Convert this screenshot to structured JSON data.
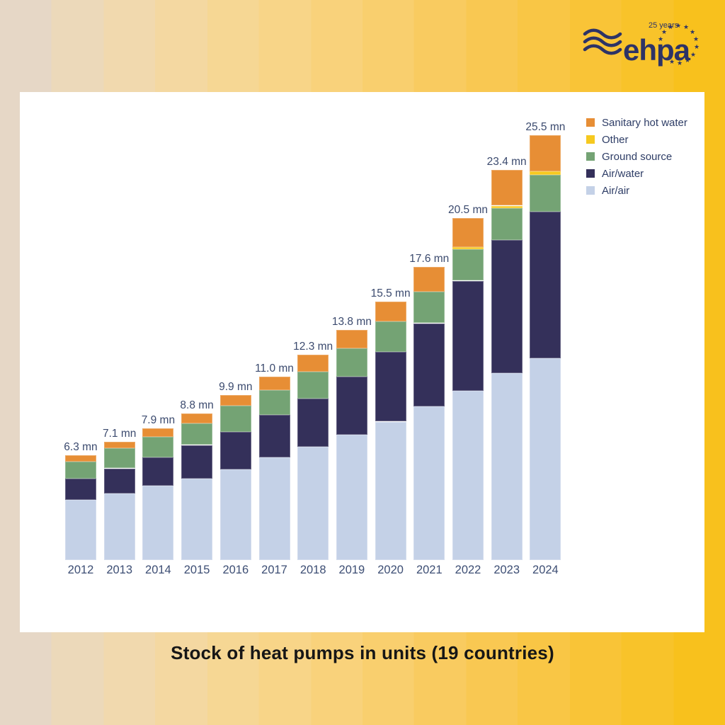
{
  "logo": {
    "wordmark": "ehpa",
    "badge": "25 years",
    "color": "#2d3366"
  },
  "title": "Stock of heat pumps in units (19 countries)",
  "chart_data": {
    "type": "bar",
    "stacked": true,
    "title": "Stock of heat pumps in units (19 countries)",
    "unit": "mn",
    "grid": false,
    "axes_shown": false,
    "legend_position": "top-right",
    "legend_order_top_to_bottom": [
      "Sanitary hot water",
      "Other",
      "Ground source",
      "Air/water",
      "Air/air"
    ],
    "categories": [
      "2012",
      "2013",
      "2014",
      "2015",
      "2016",
      "2017",
      "2018",
      "2019",
      "2020",
      "2021",
      "2022",
      "2023",
      "2024"
    ],
    "totals": [
      6.3,
      7.1,
      7.9,
      8.8,
      9.9,
      11.0,
      12.3,
      13.8,
      15.5,
      17.6,
      20.5,
      23.4,
      25.5
    ],
    "totals_display": [
      "6.3 mn",
      "7.1 mn",
      "7.9 mn",
      "8.8 mn",
      "9.9 mn",
      "11.0 mn",
      "12.3 mn",
      "13.8 mn",
      "15.5 mn",
      "17.6 mn",
      "20.5 mn",
      "23.4 mn",
      "25.5 mn"
    ],
    "ylim": [
      0,
      27
    ],
    "series": [
      {
        "key": "air-air",
        "name": "Air/air",
        "color": "#c4d1e7",
        "values": [
          3.6,
          4.0,
          4.45,
          4.9,
          5.45,
          6.15,
          6.8,
          7.5,
          8.3,
          9.2,
          10.15,
          11.2,
          12.1
        ]
      },
      {
        "key": "air-water",
        "name": "Air/water",
        "color": "#34305a",
        "values": [
          1.3,
          1.5,
          1.7,
          2.0,
          2.25,
          2.55,
          2.9,
          3.5,
          4.2,
          5.0,
          6.6,
          8.0,
          8.8
        ]
      },
      {
        "key": "ground-source",
        "name": "Ground source",
        "color": "#74a374",
        "values": [
          1.0,
          1.2,
          1.25,
          1.3,
          1.55,
          1.5,
          1.6,
          1.7,
          1.8,
          1.9,
          1.9,
          1.9,
          2.2
        ]
      },
      {
        "key": "other",
        "name": "Other",
        "color": "#f6c91f",
        "values": [
          0,
          0,
          0,
          0,
          0,
          0,
          0,
          0,
          0,
          0,
          0.1,
          0.15,
          0.2
        ]
      },
      {
        "key": "sanitary-hot-water",
        "name": "Sanitary hot water",
        "color": "#e78e35",
        "values": [
          0.4,
          0.4,
          0.5,
          0.6,
          0.65,
          0.8,
          1.0,
          1.1,
          1.2,
          1.5,
          1.75,
          2.15,
          2.2
        ]
      }
    ]
  }
}
